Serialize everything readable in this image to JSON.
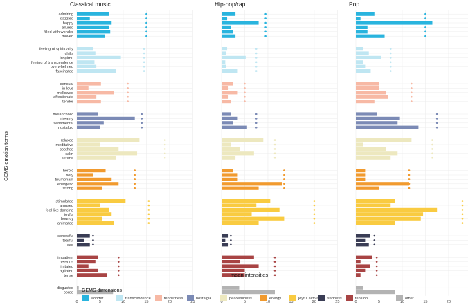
{
  "chart_data": {
    "type": "bar",
    "orientation": "horizontal",
    "xlabel": "mean intensities",
    "ylabel": "GEMS emotion terms",
    "xlim": [
      0,
      25
    ],
    "xticks": [
      "0",
      "5",
      "10",
      "15",
      "20",
      "25"
    ],
    "facets": [
      "Classical music",
      "Hip-hop/rap",
      "Pop"
    ],
    "legend_title": "GEMS dimensions",
    "groups": [
      {
        "dimension": "wonder",
        "color": "#29b4de",
        "items": [
          {
            "term": "admiring",
            "values": [
              7.0,
              3.0,
              4.0
            ]
          },
          {
            "term": "dazzled",
            "values": [
              2.8,
              1.2,
              1.0
            ]
          },
          {
            "term": "happy",
            "values": [
              7.5,
              8.0,
              16.5
            ]
          },
          {
            "term": "allured",
            "values": [
              7.0,
              2.0,
              2.5
            ]
          },
          {
            "term": "filled with wonder",
            "values": [
              7.2,
              2.5,
              2.5
            ]
          },
          {
            "term": "moved",
            "values": [
              6.0,
              3.0,
              6.2
            ]
          }
        ],
        "dots": [
          15,
          9.5,
          15
        ]
      },
      {
        "dimension": "transcendence",
        "color": "#bfe6f2",
        "items": [
          {
            "term": "feeling of spirituality",
            "values": [
              3.5,
              1.2,
              1.5
            ]
          },
          {
            "term": "chills",
            "values": [
              4.0,
              1.0,
              2.8
            ]
          },
          {
            "term": "inspired",
            "values": [
              9.5,
              5.2,
              5.5
            ]
          },
          {
            "term": "feeling of transcendence",
            "values": [
              3.8,
              0.8,
              1.5
            ]
          },
          {
            "term": "overwhelmed",
            "values": [
              4.2,
              1.0,
              2.0
            ]
          },
          {
            "term": "fascinated",
            "values": [
              8.5,
              3.5,
              3.2
            ]
          }
        ],
        "dots": [
          14.5,
          7.5,
          7.5
        ]
      },
      {
        "dimension": "tenderness",
        "color": "#f7b9a5",
        "items": [
          {
            "term": "sensual",
            "values": [
              5.2,
              2.5,
              5.0
            ]
          },
          {
            "term": "in love",
            "values": [
              2.5,
              1.5,
              5.0
            ]
          },
          {
            "term": "mellowed",
            "values": [
              8.0,
              3.5,
              6.5
            ]
          },
          {
            "term": "affectionate",
            "values": [
              4.2,
              1.5,
              7.0
            ]
          },
          {
            "term": "tender",
            "values": [
              5.2,
              2.0,
              4.0
            ]
          }
        ],
        "dots": [
          11,
          5,
          12
        ]
      },
      {
        "dimension": "nostalgia",
        "color": "#7b8ab5",
        "items": [
          {
            "term": "melancholic",
            "values": [
              4.5,
              2.0,
              4.5
            ]
          },
          {
            "term": "dreamy",
            "values": [
              12.5,
              3.5,
              9.5
            ]
          },
          {
            "term": "sentimental",
            "values": [
              5.8,
              2.5,
              9.0
            ]
          },
          {
            "term": "nostalgic",
            "values": [
              5.0,
              5.5,
              13.5
            ]
          }
        ],
        "dots": [
          14,
          7.5,
          17.5
        ]
      },
      {
        "dimension": "peacefulness",
        "color": "#ede8bf",
        "items": [
          {
            "term": "relaxed",
            "values": [
              13.5,
              9.0,
              12.0
            ]
          },
          {
            "term": "meditative",
            "values": [
              5.0,
              2.0,
              1.5
            ]
          },
          {
            "term": "soothed",
            "values": [
              9.0,
              4.0,
              6.5
            ]
          },
          {
            "term": "calm",
            "values": [
              13.0,
              7.0,
              9.0
            ]
          },
          {
            "term": "serene",
            "values": [
              8.5,
              3.0,
              7.5
            ]
          }
        ],
        "dots": [
          19,
          11.5,
          16.5
        ]
      },
      {
        "dimension": "energy",
        "color": "#f19a2e",
        "items": [
          {
            "term": "heroic",
            "values": [
              6.2,
              2.5,
              2.0
            ]
          },
          {
            "term": "fiery",
            "values": [
              3.5,
              3.5,
              2.0
            ]
          },
          {
            "term": "triumphant",
            "values": [
              7.5,
              3.5,
              2.0
            ]
          },
          {
            "term": "energetic",
            "values": [
              9.0,
              13.0,
              11.5
            ]
          },
          {
            "term": "strong",
            "values": [
              5.5,
              8.0,
              5.0
            ]
          }
        ],
        "dots": [
          12.5,
          13.5,
          11.5
        ]
      },
      {
        "dimension": "joyful activation",
        "color": "#f9cb41",
        "items": [
          {
            "term": "stimulated",
            "values": [
              10.5,
              10.5,
              8.5
            ]
          },
          {
            "term": "amused",
            "values": [
              5.0,
              7.5,
              7.5
            ]
          },
          {
            "term": "feel like dancing",
            "values": [
              7.0,
              12.5,
              17.5
            ]
          },
          {
            "term": "joyful",
            "values": [
              7.5,
              6.5,
              14.5
            ]
          },
          {
            "term": "bouncy",
            "values": [
              5.5,
              13.5,
              14.0
            ]
          },
          {
            "term": "animated",
            "values": [
              8.0,
              8.0,
              8.5
            ]
          }
        ],
        "dots": [
          15.5,
          20,
          23
        ]
      },
      {
        "dimension": "sadness",
        "color": "#3a3d55",
        "items": [
          {
            "term": "sorrowful",
            "values": [
              2.8,
              1.5,
              3.0
            ]
          },
          {
            "term": "tearful",
            "values": [
              1.5,
              0.8,
              2.0
            ]
          },
          {
            "term": "sad",
            "values": [
              2.8,
              1.5,
              2.8
            ]
          }
        ],
        "dots": [
          3.5,
          2,
          4
        ]
      },
      {
        "dimension": "tension",
        "color": "#a84444",
        "items": [
          {
            "term": "impatient",
            "values": [
              4.5,
              7.0,
              3.5
            ]
          },
          {
            "term": "nervous",
            "values": [
              4.0,
              4.0,
              1.0
            ]
          },
          {
            "term": "irritated",
            "values": [
              2.5,
              8.0,
              3.0
            ]
          },
          {
            "term": "agitated",
            "values": [
              4.5,
              5.0,
              2.0
            ]
          },
          {
            "term": "tense",
            "values": [
              6.5,
              5.0,
              1.0
            ]
          }
        ],
        "dots": [
          9,
          11.5,
          4.5
        ]
      },
      {
        "dimension": "other",
        "color": "#b3b3b3",
        "items": [
          {
            "term": "disgusted",
            "values": [
              0.4,
              3.8,
              1.5
            ]
          },
          {
            "term": "bored",
            "values": [
              7.8,
              11.5,
              8.5
            ]
          }
        ],
        "dots": []
      }
    ]
  }
}
